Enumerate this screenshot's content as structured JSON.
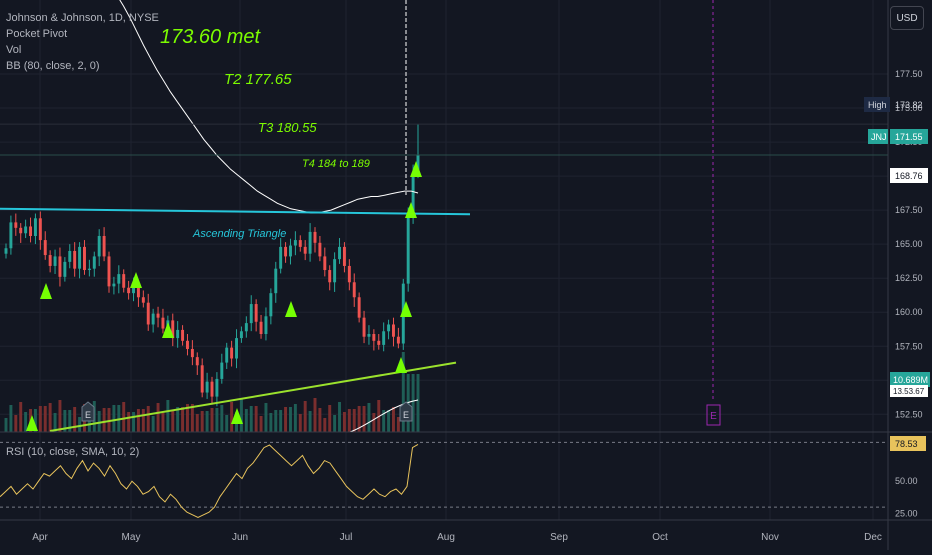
{
  "symbol_title": "Johnson & Johnson, 1D, NYSE",
  "indicators": [
    "Pocket Pivot",
    "Vol",
    "BB (80, close, 2, 0)"
  ],
  "currency_button": "USD",
  "annotations": {
    "met": "173.60  met",
    "t2": "T2 177.65",
    "t3": "T3 180.55",
    "t4": "T4 184 to 189",
    "pattern": "Ascending Triangle"
  },
  "price_labels": {
    "high_tag": "High",
    "high_value": "173.82",
    "ticker_tag": "JNJ",
    "last_value": "171.55",
    "bb_value": "168.76",
    "vol_value": "10.689M",
    "vol_ma_value": "13.53.67"
  },
  "earnings_marker": "E",
  "rsi": {
    "label": "RSI (10, close, SMA, 10, 2)",
    "value": "78.53"
  },
  "colors": {
    "background": "#131722",
    "up": "#26a69a",
    "down": "#ef5350",
    "annotation": "#7cfc00",
    "triangle_line": "#26c6da",
    "support_line": "#9be22d",
    "rsi_line": "#e8c35c",
    "bb_line": "#ffffff",
    "earnings": "#9c27b0",
    "pivot_marker": "#76ff03"
  },
  "chart_data": [
    {
      "type": "candlestick",
      "title": "Johnson & Johnson, 1D, NYSE",
      "y_axis_ticks": [
        152.5,
        155.0,
        157.5,
        160.0,
        162.5,
        165.0,
        167.5,
        170.0,
        172.5,
        175.0,
        177.5
      ],
      "x_axis_ticks": [
        "Apr",
        "May",
        "Jun",
        "Jul",
        "Aug",
        "Sep",
        "Oct",
        "Nov",
        "Dec"
      ],
      "ylim": [
        151.2,
        180.0
      ],
      "close_series": [
        164.7,
        166.6,
        166.2,
        165.8,
        166.3,
        165.6,
        166.9,
        165.3,
        164.2,
        163.4,
        164.1,
        162.6,
        163.7,
        164.5,
        163.2,
        164.8,
        163.1,
        163.2,
        164.1,
        165.6,
        164.1,
        161.9,
        162.1,
        162.8,
        161.8,
        161.4,
        161.9,
        161.1,
        160.7,
        159.1,
        159.9,
        159.6,
        158.8,
        159.4,
        158.1,
        158.7,
        157.9,
        157.3,
        156.7,
        156.1,
        154.1,
        154.9,
        153.8,
        155.1,
        156.3,
        157.4,
        156.6,
        158.1,
        158.6,
        159.2,
        160.6,
        159.3,
        158.4,
        159.7,
        161.4,
        163.2,
        164.8,
        164.1,
        164.9,
        165.3,
        164.8,
        164.3,
        165.9,
        165.1,
        164.1,
        163.1,
        162.2,
        163.9,
        164.8,
        163.4,
        162.2,
        161.1,
        159.6,
        158.2,
        158.4,
        157.9,
        157.6,
        158.6,
        159.1,
        158.2,
        157.7,
        162.1,
        167.2,
        170.2,
        171.55
      ],
      "bollinger_mid_80": [
        186.0,
        185.5,
        184.9,
        184.1,
        183.3,
        182.5,
        181.6,
        180.6,
        179.6,
        178.7,
        177.8,
        177.0,
        176.2,
        175.5,
        174.8,
        174.1,
        173.4,
        172.7,
        172.1,
        171.5,
        171.0,
        170.5,
        170.1,
        169.7,
        169.3,
        168.9,
        168.6,
        168.3,
        168.0,
        167.8,
        167.6,
        167.5,
        167.4,
        167.3,
        167.3,
        167.4,
        167.5,
        167.7,
        167.9,
        168.1,
        168.3,
        168.4,
        168.5,
        168.5,
        168.6,
        168.7,
        168.8,
        168.9,
        168.9,
        168.76
      ],
      "earnings_events": [
        "Apr",
        "Jul",
        "Oct"
      ]
    },
    {
      "type": "line",
      "title": "RSI (10, close, SMA, 10, 2)",
      "y_axis_ticks": [
        25.0,
        50.0,
        78.53
      ],
      "ylim": [
        20,
        85
      ],
      "series": [
        {
          "name": "RSI",
          "values": [
            38,
            42,
            46,
            40,
            44,
            48,
            44,
            50,
            56,
            54,
            58,
            62,
            56,
            52,
            60,
            66,
            58,
            64,
            60,
            54,
            62,
            56,
            48,
            44,
            50,
            46,
            40,
            42,
            46,
            38,
            34,
            40,
            36,
            30,
            26,
            24,
            22,
            24,
            26,
            30,
            38,
            44,
            50,
            56,
            52,
            60,
            64,
            70,
            76,
            78,
            74,
            70,
            66,
            62,
            66,
            70,
            62,
            56,
            60,
            66,
            64,
            58,
            52,
            46,
            42,
            38,
            36,
            40,
            44,
            40,
            38,
            42,
            44,
            40,
            46,
            76,
            78.53
          ]
        }
      ]
    }
  ]
}
